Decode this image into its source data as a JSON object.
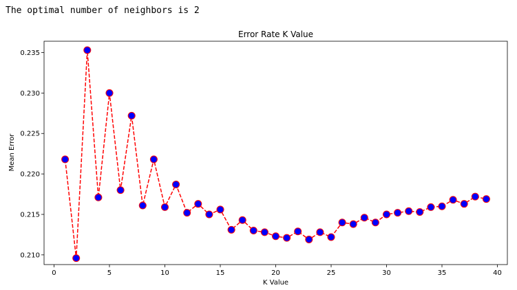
{
  "output": {
    "text": "The optimal number of neighbors is 2"
  },
  "chart_data": {
    "type": "line",
    "title": "Error Rate K Value",
    "xlabel": "K Value",
    "ylabel": "Mean Error",
    "xlim": [
      -0.9,
      40.9
    ],
    "ylim": [
      0.2088,
      0.2364
    ],
    "xticks": [
      0,
      5,
      10,
      15,
      20,
      25,
      30,
      35,
      40
    ],
    "yticks": [
      0.21,
      0.215,
      0.22,
      0.225,
      0.23,
      0.235
    ],
    "grid": false,
    "line_color": "#ff0000",
    "line_style": "dashed",
    "marker_face_color": "#0000ff",
    "marker_edge_color": "#ff0000",
    "x": [
      1,
      2,
      3,
      4,
      5,
      6,
      7,
      8,
      9,
      10,
      11,
      12,
      13,
      14,
      15,
      16,
      17,
      18,
      19,
      20,
      21,
      22,
      23,
      24,
      25,
      26,
      27,
      28,
      29,
      30,
      31,
      32,
      33,
      34,
      35,
      36,
      37,
      38,
      39
    ],
    "y": [
      0.2218,
      0.2096,
      0.2353,
      0.2171,
      0.23,
      0.218,
      0.2272,
      0.2161,
      0.2218,
      0.2159,
      0.2187,
      0.2152,
      0.2163,
      0.215,
      0.2156,
      0.2131,
      0.2143,
      0.213,
      0.2128,
      0.2123,
      0.2121,
      0.2129,
      0.2119,
      0.2128,
      0.2122,
      0.214,
      0.2138,
      0.2146,
      0.214,
      0.215,
      0.2152,
      0.2154,
      0.2153,
      0.2159,
      0.216,
      0.2168,
      0.2163,
      0.2172,
      0.2169
    ]
  }
}
